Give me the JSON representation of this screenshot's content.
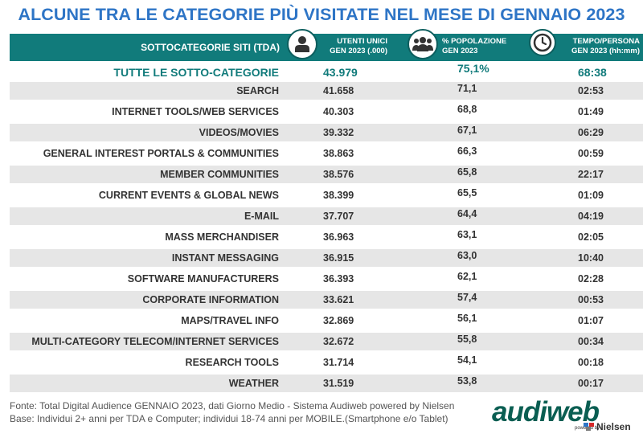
{
  "title": "ALCUNE TRA LE CATEGORIE PIÙ VISITATE NEL MESE DI GENNAIO 2023",
  "header": {
    "col_name": "SOTTOCATEGORIE SITI  (TDA)",
    "col_users_line1": "UTENTI UNICI",
    "col_users_line2": "GEN 2023 (.000)",
    "col_pop_line1": "% POPOLAZIONE",
    "col_pop_line2": "GEN 2023",
    "col_time_line1": "TEMPO/PERSONA",
    "col_time_line2": "GEN 2023 (hh:mm)"
  },
  "icons": {
    "users": "person-icon",
    "pop": "group-icon",
    "time": "clock-icon"
  },
  "total": {
    "name": "TUTTE LE SOTTO-CATEGORIE",
    "users": "43.979",
    "pop": "75,1%",
    "time": "68:38"
  },
  "rows": [
    {
      "name": "SEARCH",
      "users": "41.658",
      "pop": "71,1",
      "time": "02:53"
    },
    {
      "name": "INTERNET TOOLS/WEB SERVICES",
      "users": "40.303",
      "pop": "68,8",
      "time": "01:49"
    },
    {
      "name": "VIDEOS/MOVIES",
      "users": "39.332",
      "pop": "67,1",
      "time": "06:29"
    },
    {
      "name": "GENERAL INTEREST PORTALS & COMMUNITIES",
      "users": "38.863",
      "pop": "66,3",
      "time": "00:59"
    },
    {
      "name": "MEMBER COMMUNITIES",
      "users": "38.576",
      "pop": "65,8",
      "time": "22:17"
    },
    {
      "name": "CURRENT EVENTS & GLOBAL NEWS",
      "users": "38.399",
      "pop": "65,5",
      "time": "01:09"
    },
    {
      "name": "E-MAIL",
      "users": "37.707",
      "pop": "64,4",
      "time": "04:19"
    },
    {
      "name": "MASS MERCHANDISER",
      "users": "36.963",
      "pop": "63,1",
      "time": "02:05"
    },
    {
      "name": "INSTANT MESSAGING",
      "users": "36.915",
      "pop": "63,0",
      "time": "10:40"
    },
    {
      "name": "SOFTWARE MANUFACTURERS",
      "users": "36.393",
      "pop": "62,1",
      "time": "02:28"
    },
    {
      "name": "CORPORATE INFORMATION",
      "users": "33.621",
      "pop": "57,4",
      "time": "00:53"
    },
    {
      "name": "MAPS/TRAVEL INFO",
      "users": "32.869",
      "pop": "56,1",
      "time": "01:07"
    },
    {
      "name": "MULTI-CATEGORY TELECOM/INTERNET SERVICES",
      "users": "32.672",
      "pop": "55,8",
      "time": "00:34"
    },
    {
      "name": "RESEARCH TOOLS",
      "users": "31.714",
      "pop": "54,1",
      "time": "00:18"
    },
    {
      "name": "WEATHER",
      "users": "31.519",
      "pop": "53,8",
      "time": "00:17"
    }
  ],
  "footer": {
    "line1": "Fonte: Total Digital Audience GENNAIO 2023, dati Giorno Medio - Sistema Audiweb powered by Nielsen",
    "line2": "Base:  Individui 2+ anni per TDA e Computer; individui 18-74 anni per MOBILE.(Smartphone e/o Tablet)"
  },
  "logo": {
    "brand": "audiweb",
    "powered": "powered by",
    "partner": "Nielsen"
  },
  "colors": {
    "title": "#2e75c6",
    "header_bg": "#117b7b",
    "row_shade": "#e6e6e6",
    "total_text": "#117b7b"
  }
}
